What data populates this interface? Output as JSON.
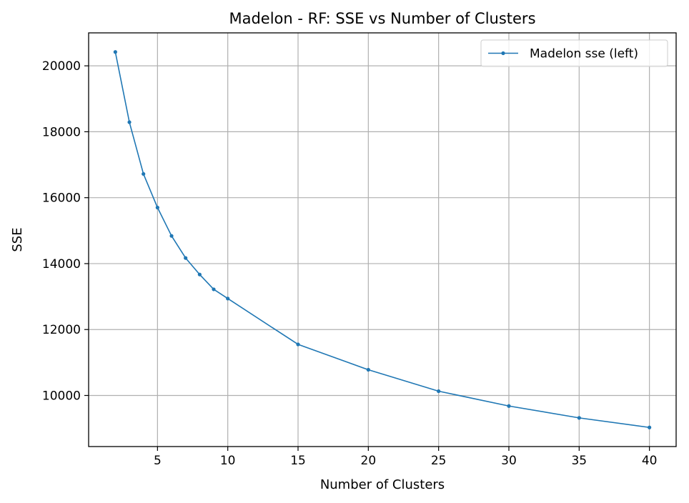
{
  "chart_data": {
    "type": "line",
    "title": "Madelon - RF: SSE vs Number of Clusters",
    "xlabel": "Number of Clusters",
    "ylabel": "SSE",
    "xlim": [
      0.1,
      41.9
    ],
    "ylim": [
      8450,
      21000
    ],
    "x_ticks": [
      5,
      10,
      15,
      20,
      25,
      30,
      35,
      40
    ],
    "y_ticks": [
      10000,
      12000,
      14000,
      16000,
      18000,
      20000
    ],
    "grid": true,
    "legend_position": "top-right",
    "series": [
      {
        "name": "Madelon sse (left)",
        "color": "#1f77b4",
        "marker": "circle",
        "x": [
          2,
          3,
          4,
          5,
          6,
          7,
          8,
          9,
          10,
          15,
          20,
          25,
          30,
          35,
          40
        ],
        "y": [
          20420,
          18290,
          16720,
          15700,
          14840,
          14170,
          13670,
          13220,
          12940,
          11550,
          10780,
          10130,
          9680,
          9320,
          9030
        ]
      }
    ]
  }
}
